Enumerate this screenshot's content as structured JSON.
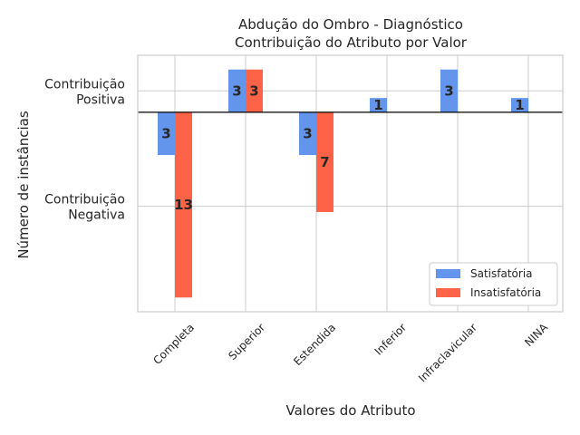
{
  "chart_data": {
    "type": "bar",
    "title": [
      "Abdução do Ombro - Diagnóstico",
      "Contribuição do Atributo por Valor"
    ],
    "xlabel": "Valores do Atributo",
    "ylabel": "Número de instâncias",
    "categories": [
      "Completa",
      "Superior",
      "Estendida",
      "Inferior",
      "Infraclavicular",
      "NINA"
    ],
    "series": [
      {
        "name": "Satisfatória",
        "color": "#6495ED",
        "values": [
          -3,
          3,
          -3,
          1,
          3,
          1
        ]
      },
      {
        "name": "Insatisfatória",
        "color": "#FF6347",
        "values": [
          -13,
          3,
          -7,
          null,
          null,
          null
        ]
      }
    ],
    "data_labels": {
      "Satisfatória": [
        "3",
        "3",
        "3",
        "1",
        "3",
        "1"
      ],
      "Insatisfatória": [
        "13",
        "3",
        "7",
        "",
        "",
        ""
      ]
    },
    "y_level_labels": [
      {
        "lines": [
          "Contribuição",
          "Positiva"
        ],
        "value": 1.5
      },
      {
        "lines": [
          "Contribuição",
          "Negativa"
        ],
        "value": -6.6
      }
    ],
    "ylim": [
      -14,
      4
    ],
    "grid": true,
    "legend_position": "lower-right"
  }
}
